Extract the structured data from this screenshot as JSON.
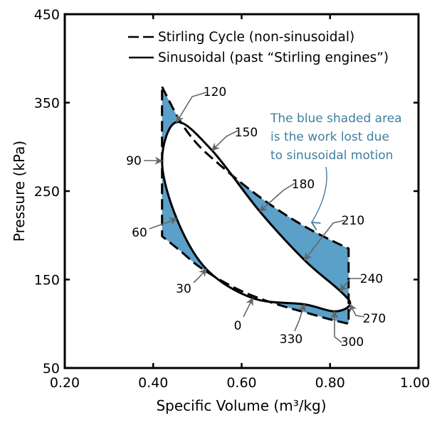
{
  "chart_data": {
    "type": "line",
    "title": "",
    "xlabel": "Specific Volume (m³/kg)",
    "ylabel": "Pressure (kPa)",
    "xlim": [
      0.2,
      1.0
    ],
    "ylim": [
      50,
      450
    ],
    "xticks": [
      0.2,
      0.4,
      0.6,
      0.8,
      1.0
    ],
    "xtick_labels": [
      "0.20",
      "0.40",
      "0.60",
      "0.80",
      "1.00"
    ],
    "yticks": [
      50,
      150,
      250,
      350,
      450
    ],
    "ytick_labels": [
      "50",
      "150",
      "250",
      "350",
      "450"
    ],
    "grid": false,
    "legend": {
      "position": "top-right",
      "entries": [
        {
          "label": "Stirling Cycle (non-sinusoidal)",
          "style": "dashed"
        },
        {
          "label": "Sinusoidal (past “Stirling engines”)",
          "style": "solid"
        }
      ]
    },
    "series": [
      {
        "name": "Stirling Cycle (non-sinusoidal)",
        "style": "dashed",
        "points": [
          [
            0.42,
            368
          ],
          [
            0.46,
            330
          ],
          [
            0.5,
            303
          ],
          [
            0.55,
            280
          ],
          [
            0.6,
            259
          ],
          [
            0.65,
            240
          ],
          [
            0.7,
            223
          ],
          [
            0.75,
            208
          ],
          [
            0.8,
            195
          ],
          [
            0.842,
            185
          ],
          [
            0.842,
            100
          ],
          [
            0.8,
            105
          ],
          [
            0.75,
            112
          ],
          [
            0.7,
            119
          ],
          [
            0.65,
            127
          ],
          [
            0.6,
            137
          ],
          [
            0.55,
            150
          ],
          [
            0.5,
            166
          ],
          [
            0.46,
            183
          ],
          [
            0.42,
            199
          ],
          [
            0.42,
            368
          ]
        ]
      },
      {
        "name": "Sinusoidal (past “Stirling engines”)",
        "style": "solid",
        "angles": [
          0,
          30,
          60,
          90,
          120,
          150,
          180,
          210,
          240,
          270,
          300,
          330
        ],
        "points": [
          [
            0.625,
            129
          ],
          [
            0.52,
            162
          ],
          [
            0.453,
            219
          ],
          [
            0.42,
            284
          ],
          [
            0.453,
            328
          ],
          [
            0.533,
            296
          ],
          [
            0.641,
            227
          ],
          [
            0.742,
            172
          ],
          [
            0.823,
            137
          ],
          [
            0.845,
            122
          ],
          [
            0.81,
            114
          ],
          [
            0.742,
            122
          ]
        ]
      }
    ],
    "fill_between": {
      "description_color": "#5aa0c8"
    },
    "annotations": {
      "angle_labels": [
        "0",
        "30",
        "60",
        "90",
        "120",
        "150",
        "180",
        "210",
        "240",
        "270",
        "300",
        "330"
      ],
      "note_lines": [
        "The blue shaded area",
        "is the work lost due",
        "to sinusoidal motion"
      ]
    },
    "colors": {
      "fill": "#5aa0c8",
      "note": "#3f7f9f",
      "arrow": "#666666",
      "line": "#000000"
    }
  }
}
